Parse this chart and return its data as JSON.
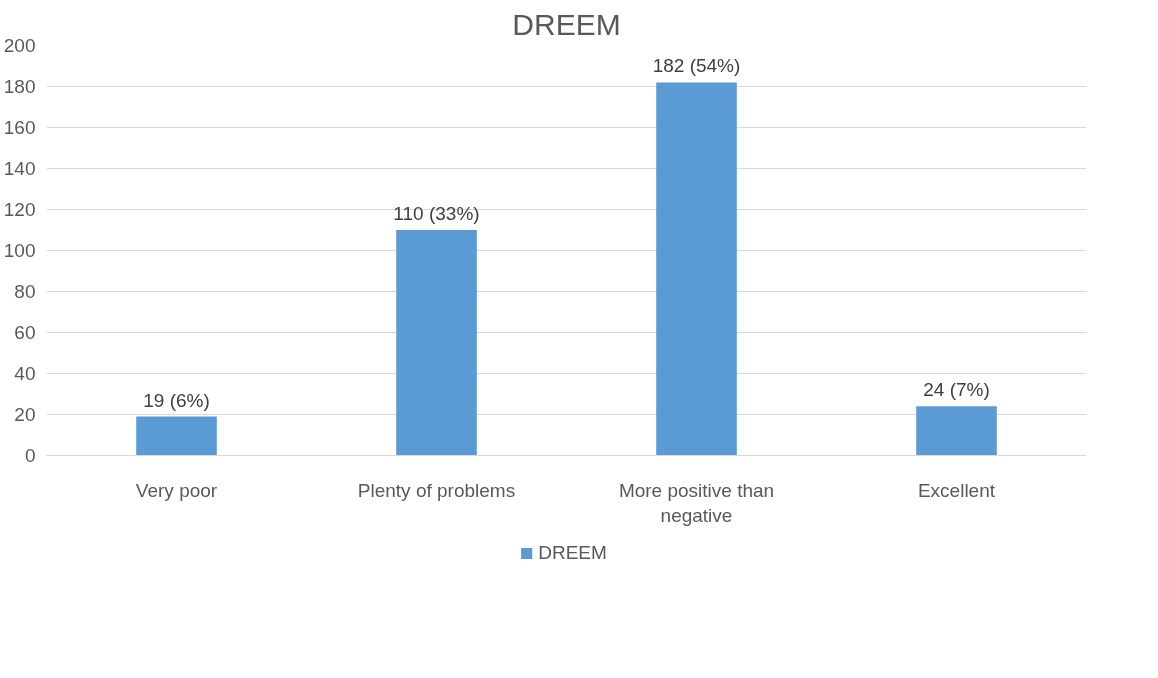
{
  "chart_data": {
    "type": "bar",
    "title": "DREEM",
    "categories": [
      "Very poor",
      "Plenty of problems",
      "More positive than negative",
      "Excellent"
    ],
    "series": [
      {
        "name": "DREEM",
        "color": "#5b9bd5",
        "values": [
          19,
          110,
          182,
          24
        ],
        "value_labels": [
          "19 (6%)",
          "110 (33%)",
          "182 (54%)",
          "24 (7%)"
        ]
      }
    ],
    "ylim": [
      0,
      200
    ],
    "yticks": [
      0,
      20,
      40,
      60,
      80,
      100,
      120,
      140,
      160,
      180,
      200
    ],
    "grid": "y",
    "legend": "bottom"
  }
}
